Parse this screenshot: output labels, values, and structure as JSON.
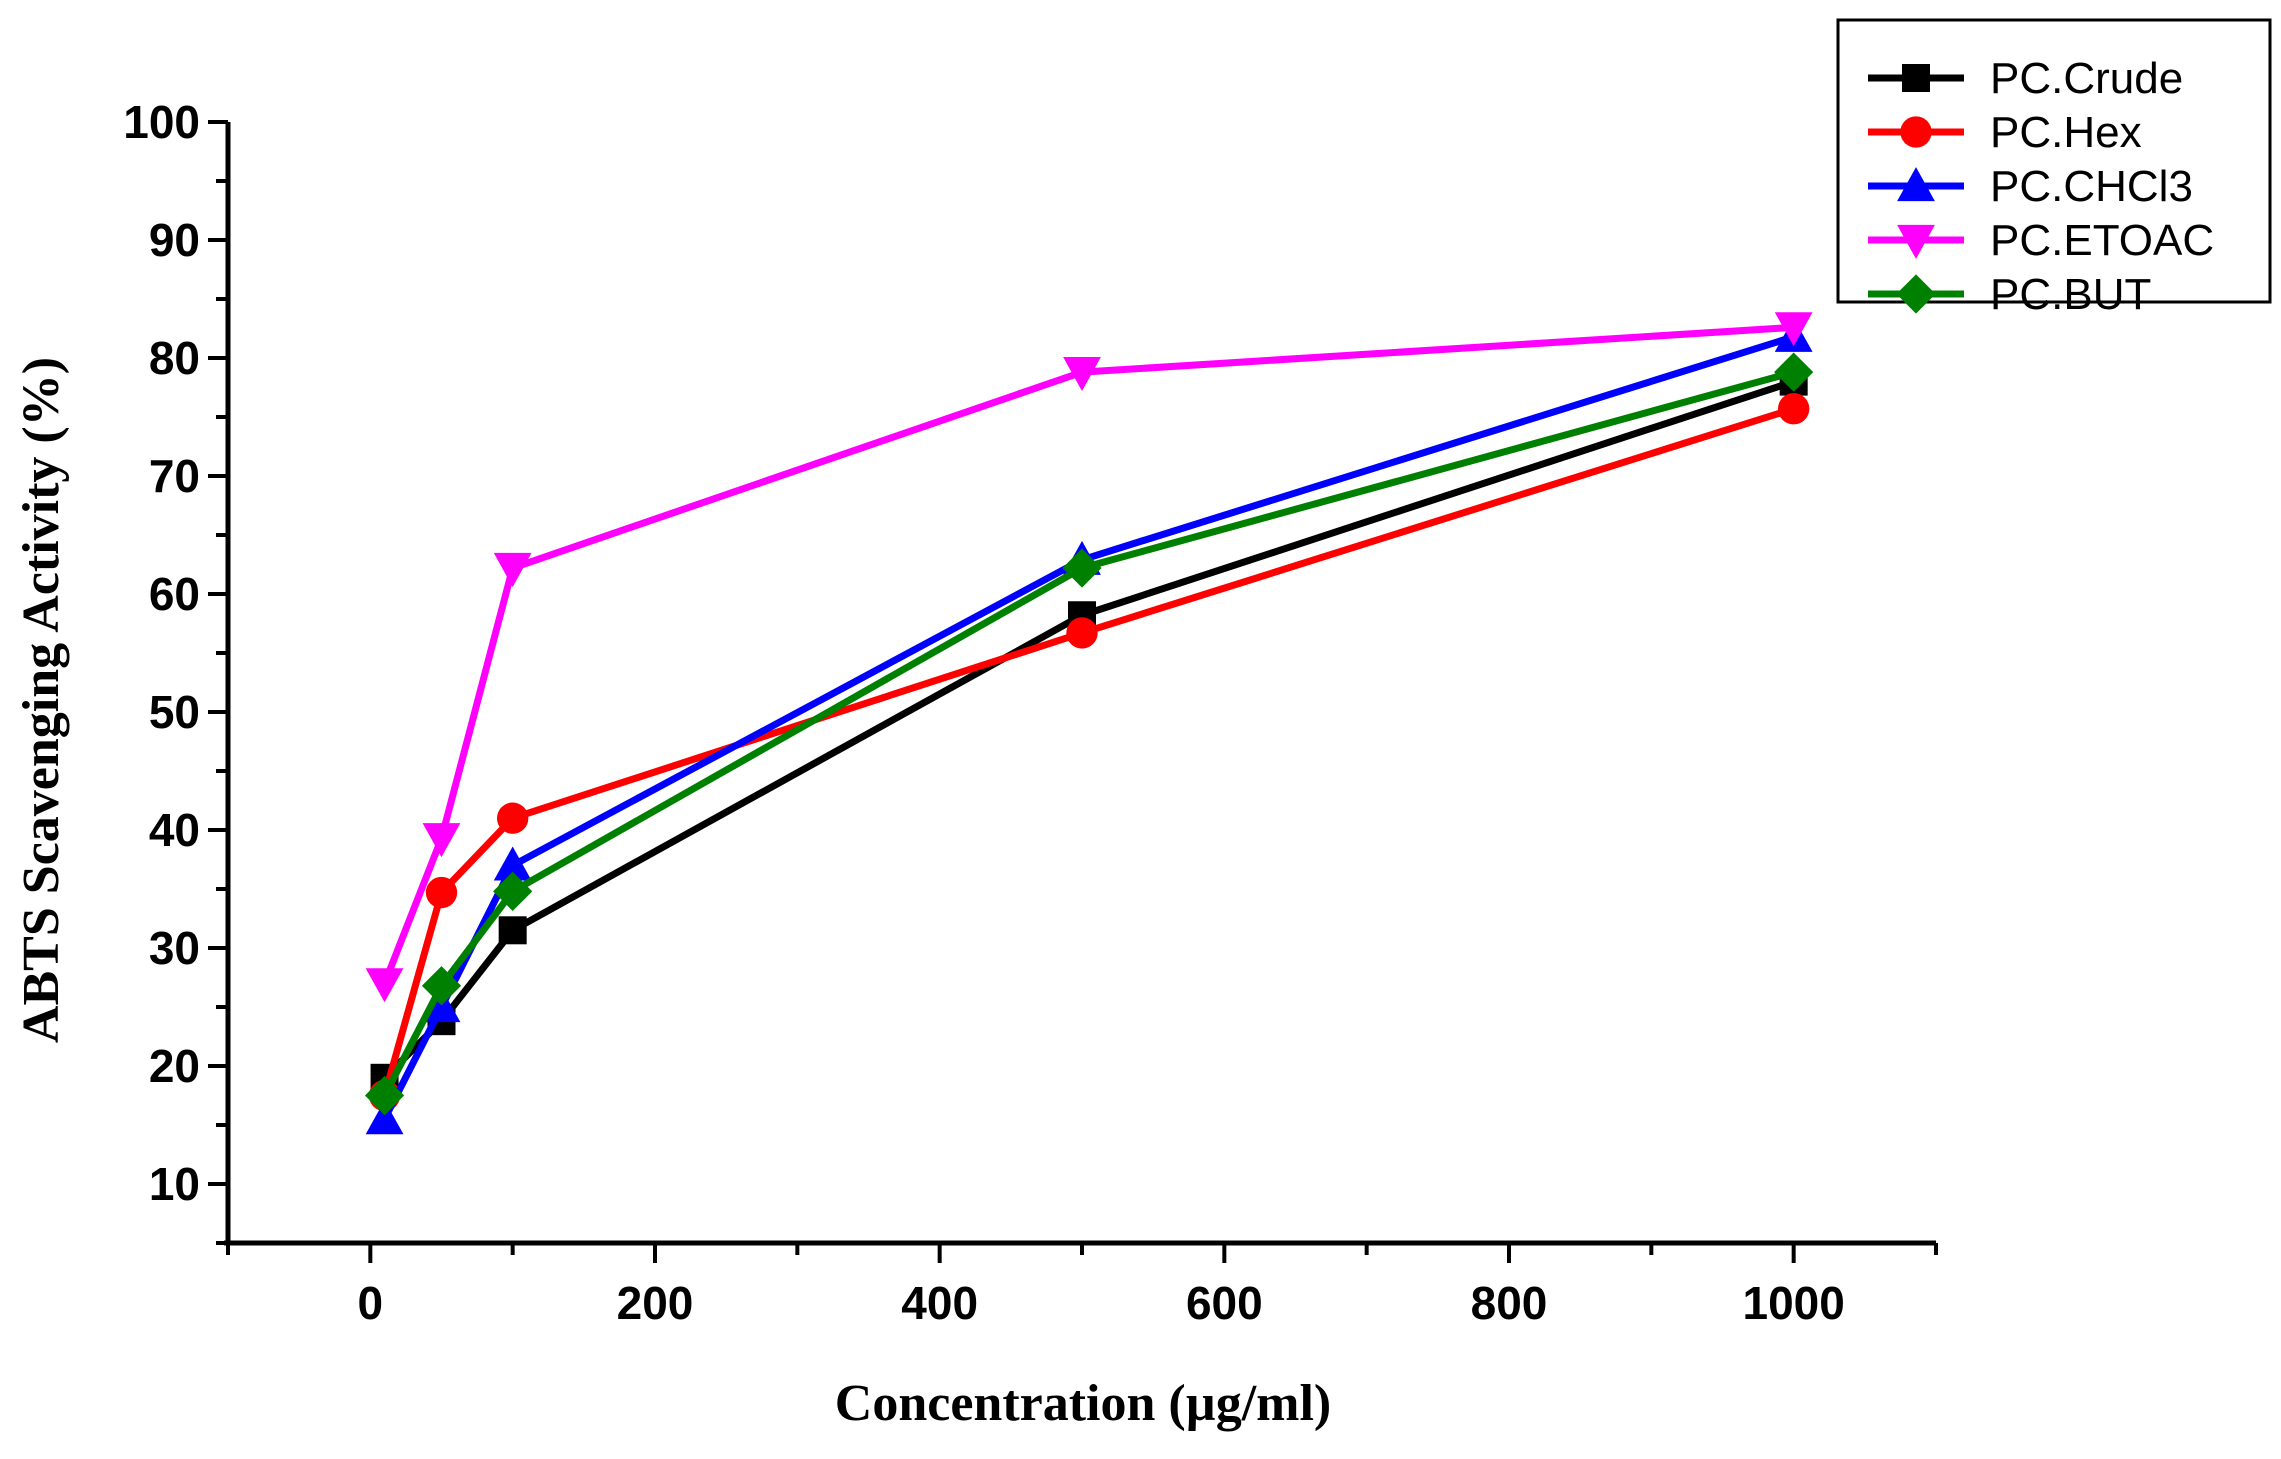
{
  "chart_data": {
    "type": "line",
    "xlabel": "Concentration (µg/ml)",
    "ylabel": "ABTS Scavenging Activity (%)",
    "xlim": [
      -100,
      1100
    ],
    "ylim": [
      5,
      100
    ],
    "xticks": [
      0,
      200,
      400,
      600,
      800,
      1000
    ],
    "yticks": [
      10,
      20,
      30,
      40,
      50,
      60,
      70,
      80,
      90,
      100
    ],
    "x": [
      10,
      50,
      100,
      500,
      1000
    ],
    "legend_position": "top-right",
    "grid": false,
    "series": [
      {
        "name": "PC.Crude",
        "color": "#000000",
        "marker": "square",
        "values": [
          19.0,
          23.8,
          31.5,
          58.2,
          78.0
        ]
      },
      {
        "name": "PC.Hex",
        "color": "#ff0000",
        "marker": "circle",
        "values": [
          17.5,
          34.7,
          41.0,
          56.7,
          75.7
        ]
      },
      {
        "name": "PC.CHCl3",
        "color": "#0000ff",
        "marker": "triangle-up",
        "values": [
          15.5,
          25.0,
          37.0,
          62.9,
          81.8
        ]
      },
      {
        "name": "PC.ETOAC",
        "color": "#ff00ff",
        "marker": "triangle-down",
        "values": [
          27.0,
          39.3,
          62.2,
          78.8,
          82.6
        ]
      },
      {
        "name": "PC.BUT",
        "color": "#008000",
        "marker": "diamond",
        "values": [
          17.5,
          26.8,
          34.8,
          62.2,
          78.8
        ]
      }
    ]
  }
}
